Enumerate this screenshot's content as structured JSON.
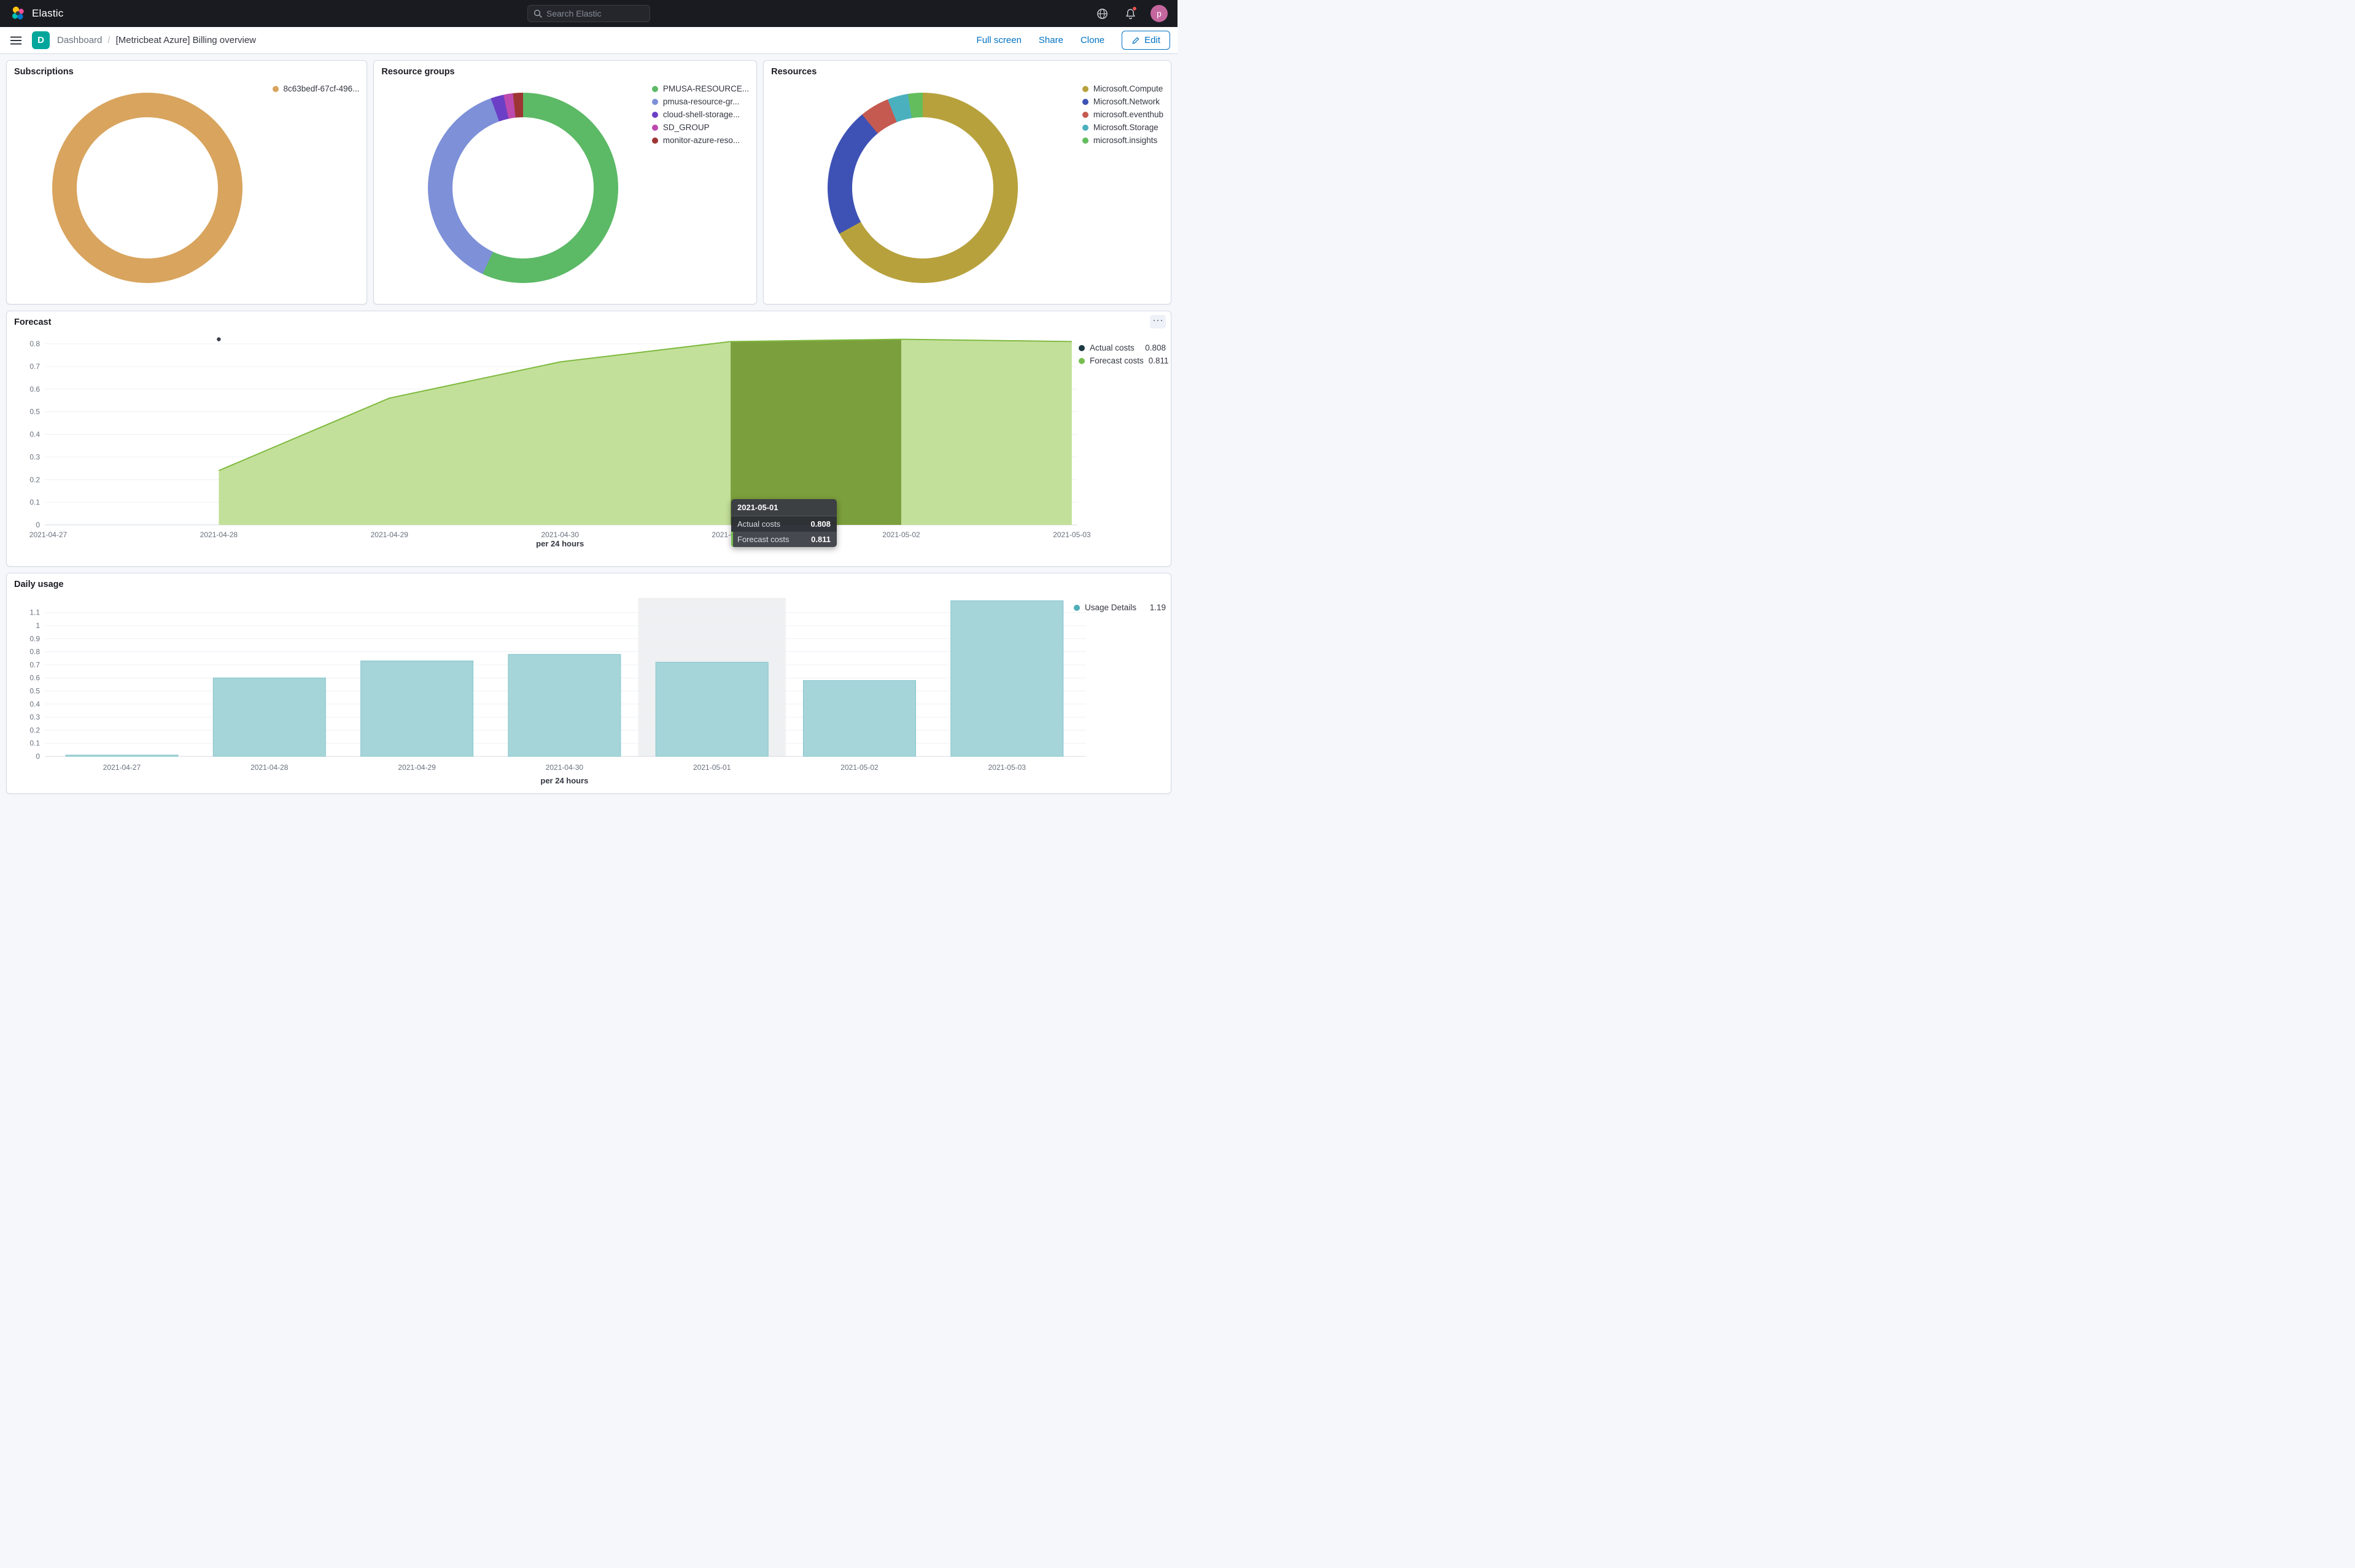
{
  "header": {
    "brand": "Elastic",
    "search_placeholder": "Search Elastic",
    "avatar_initial": "p"
  },
  "toolbar": {
    "space_badge": "D",
    "breadcrumb_root": "Dashboard",
    "page_title": "[Metricbeat Azure] Billing overview",
    "full_screen": "Full screen",
    "share": "Share",
    "clone": "Clone",
    "edit": "Edit"
  },
  "chart_data": [
    {
      "type": "pie",
      "title": "Subscriptions",
      "legend_position": "right",
      "slices": [
        {
          "label": "8c63bedf-67cf-496...",
          "value": 100,
          "color": "#D8A45E"
        }
      ]
    },
    {
      "type": "pie",
      "title": "Resource groups",
      "legend_position": "right",
      "slices": [
        {
          "label": "PMUSA-RESOURCE...",
          "value": 57,
          "color": "#5CB966"
        },
        {
          "label": "pmusa-resource-gr...",
          "value": 37.5,
          "color": "#7D90D8"
        },
        {
          "label": "cloud-shell-storage...",
          "value": 2.2,
          "color": "#6B3FC6"
        },
        {
          "label": "SD_GROUP",
          "value": 1.6,
          "color": "#BD4AAE"
        },
        {
          "label": "monitor-azure-reso...",
          "value": 1.7,
          "color": "#9D3534"
        }
      ]
    },
    {
      "type": "pie",
      "title": "Resources",
      "legend_position": "right",
      "slices": [
        {
          "label": "Microsoft.Compute",
          "value": 67,
          "color": "#B7A13D"
        },
        {
          "label": "Microsoft.Network",
          "value": 22,
          "color": "#3E52B5"
        },
        {
          "label": "microsoft.eventhub",
          "value": 5,
          "color": "#C55A50"
        },
        {
          "label": "Microsoft.Storage",
          "value": 3.5,
          "color": "#4BB0BE"
        },
        {
          "label": "microsoft.insights",
          "value": 2.5,
          "color": "#63BD5C"
        }
      ]
    },
    {
      "type": "area",
      "title": "Forecast",
      "xlabel": "per 24 hours",
      "x": [
        "2021-04-27",
        "2021-04-28",
        "2021-04-29",
        "2021-04-30",
        "2021-05-01",
        "2021-05-02",
        "2021-05-03"
      ],
      "ylim": [
        0,
        0.8
      ],
      "ytick": 0.1,
      "series": [
        {
          "name": "Forecast costs",
          "values": [
            null,
            0.24,
            0.56,
            0.72,
            0.81,
            0.82,
            0.81
          ],
          "area_color": "#C3E09A",
          "line_color": "#7FBA40"
        }
      ],
      "actual_point": {
        "x_index": 1,
        "value": 0.82,
        "color": "#3C4049"
      },
      "highlight_range": {
        "from_index": 4,
        "to_index": 5,
        "color": "#7C9F3D"
      },
      "legend": [
        {
          "label": "Actual costs",
          "value": "0.808",
          "color": "#1E3A44"
        },
        {
          "label": "Forecast costs",
          "value": "0.811",
          "color": "#77BD4F"
        }
      ],
      "tooltip": {
        "date": "2021-05-01",
        "rows": [
          {
            "label": "Actual costs",
            "value": "0.808",
            "highlight": false
          },
          {
            "label": "Forecast costs",
            "value": "0.811",
            "highlight": true
          }
        ]
      }
    },
    {
      "type": "bar",
      "title": "Daily usage",
      "xlabel": "per 24 hours",
      "categories": [
        "2021-04-27",
        "2021-04-28",
        "2021-04-29",
        "2021-04-30",
        "2021-05-01",
        "2021-05-02",
        "2021-05-03"
      ],
      "values": [
        0.01,
        0.6,
        0.73,
        0.78,
        0.72,
        0.58,
        1.19
      ],
      "ylim": [
        0,
        1.1
      ],
      "ytick": 0.1,
      "bar_color": "#A5D5D9",
      "bar_stroke": "#85C5CC",
      "hover_index": 4,
      "hover_color": "#EFF0F2",
      "legend": [
        {
          "label": "Usage Details",
          "value": "1.19",
          "color": "#4FAEB8"
        }
      ]
    }
  ]
}
